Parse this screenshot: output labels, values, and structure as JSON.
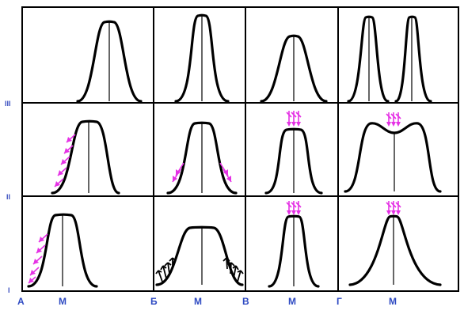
{
  "rows": [
    {
      "id": "III",
      "label": "III"
    },
    {
      "id": "II",
      "label": "II"
    },
    {
      "id": "I",
      "label": "I"
    }
  ],
  "columns": [
    {
      "id": "A",
      "label": "А",
      "mean_label": "M"
    },
    {
      "id": "B",
      "label": "Б",
      "mean_label": "M"
    },
    {
      "id": "V",
      "label": "В",
      "mean_label": "M"
    },
    {
      "id": "G",
      "label": "Г",
      "mean_label": "M"
    }
  ],
  "colors": {
    "curve": "#000000",
    "selection_arrow": "#e532e5",
    "disruptive_arrow": "#000000",
    "label": "#2d49c2"
  }
}
